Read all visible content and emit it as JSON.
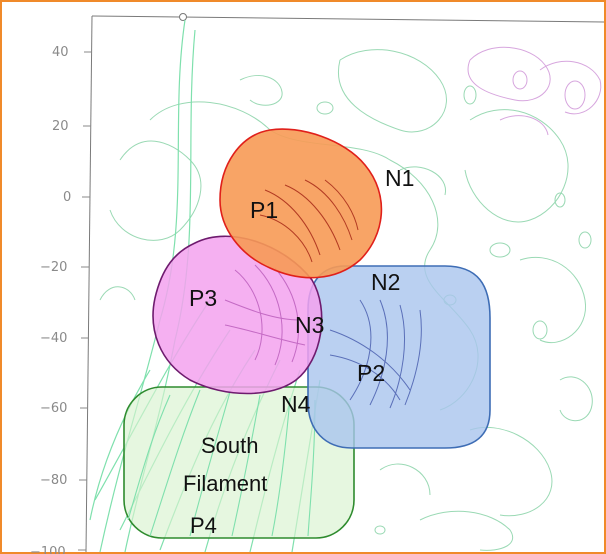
{
  "axis": {
    "y_ticks": [
      "40",
      "20",
      "0",
      "−20",
      "−40",
      "−60",
      "−80",
      "−100"
    ]
  },
  "regions": [
    {
      "id": "p1",
      "label": "P1",
      "fill": "#f79a55",
      "stroke": "#e0201b"
    },
    {
      "id": "p2",
      "label": "P2",
      "fill": "#a9c4ee",
      "stroke": "#3e6db5"
    },
    {
      "id": "p3",
      "label": "P3",
      "fill": "#f3a2ef",
      "stroke": "#6e1b6e"
    },
    {
      "id": "south",
      "label_line1": "South",
      "label_line2": "Filament",
      "label_p4": "P4",
      "fill": "#d8f2cf",
      "stroke": "#2e8b2e"
    }
  ],
  "labels": {
    "n1": "N1",
    "n2": "N2",
    "n3": "N3",
    "n4": "N4"
  },
  "colors": {
    "frame_border": "#f08a2a",
    "contour_green": "#9ad9b4",
    "contour_magenta": "#d7a6de",
    "fieldline_green": "#7fe0ad"
  }
}
